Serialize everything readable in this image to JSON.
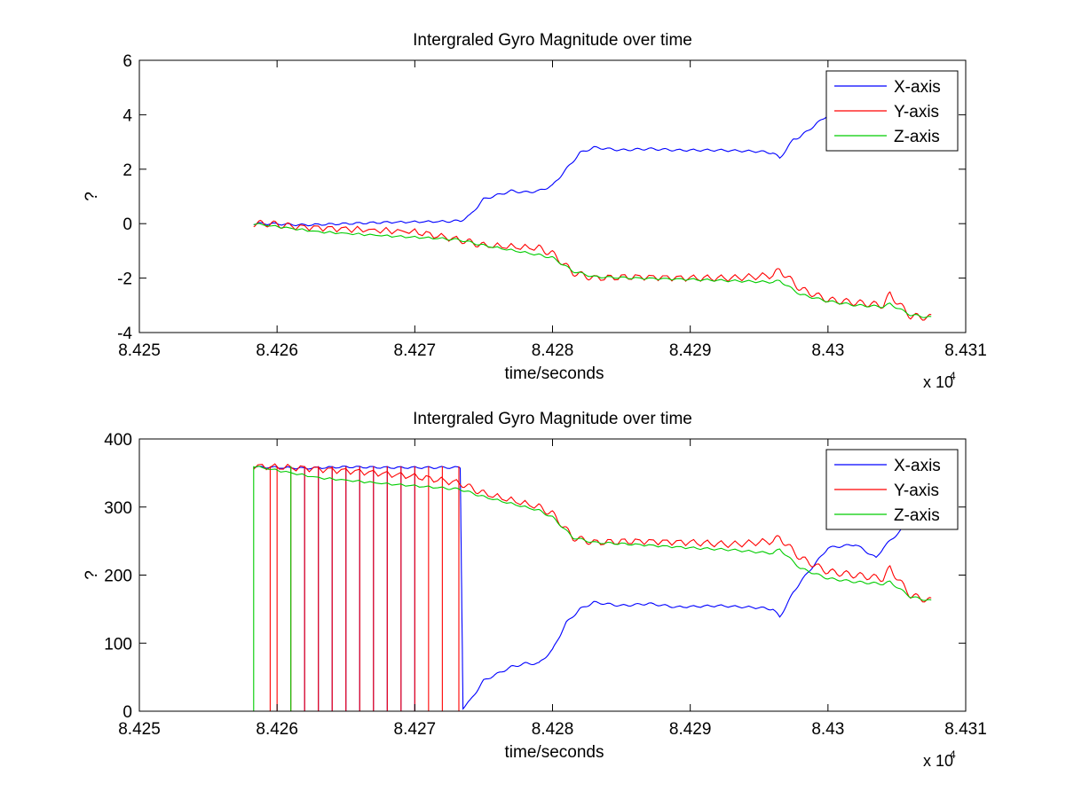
{
  "colors": {
    "x": "#0000ff",
    "y": "#ff0000",
    "z": "#00cc00",
    "axes": "#000000",
    "background": "#ffffff"
  },
  "chart_data": [
    {
      "type": "line",
      "title": "Intergraled Gyro Magnitude over time",
      "xlabel": "time/seconds",
      "ylabel": "?",
      "x_multiplier": "x 10",
      "x_multiplier_exp": "4",
      "xlim": [
        8.425,
        8.431
      ],
      "ylim": [
        -4,
        6
      ],
      "xticks": [
        8.425,
        8.426,
        8.427,
        8.428,
        8.429,
        8.43,
        8.431
      ],
      "xtick_labels": [
        "8.425",
        "8.426",
        "8.427",
        "8.428",
        "8.429",
        "8.43",
        "8.431"
      ],
      "yticks": [
        -4,
        -2,
        0,
        2,
        4,
        6
      ],
      "ytick_labels": [
        "-4",
        "-2",
        "0",
        "2",
        "4",
        "6"
      ],
      "grid": false,
      "legend": "top-right",
      "legend_entries": [
        "X-axis",
        "Y-axis",
        "Z-axis"
      ],
      "series": [
        {
          "name": "X-axis",
          "x": [
            8.42583,
            8.42595,
            8.4262,
            8.4265,
            8.4268,
            8.4272,
            8.42733,
            8.4274,
            8.4275,
            8.4277,
            8.4278,
            8.4279,
            8.428,
            8.4281,
            8.4282,
            8.4283,
            8.4285,
            8.4287,
            8.4289,
            8.4292,
            8.4295,
            8.4296,
            8.42965,
            8.42975,
            8.4298,
            8.4299,
            8.43,
            8.43012
          ],
          "y": [
            0,
            0,
            -0.05,
            0,
            0.05,
            0.08,
            0.1,
            0.3,
            0.9,
            1.2,
            1.15,
            1.2,
            1.4,
            2.0,
            2.6,
            2.8,
            2.7,
            2.75,
            2.7,
            2.7,
            2.65,
            2.6,
            2.4,
            3.1,
            3.2,
            3.6,
            4.0,
            4.1
          ]
        },
        {
          "name": "Y-axis",
          "x": [
            8.42583,
            8.42595,
            8.4261,
            8.4265,
            8.427,
            8.42733,
            8.4275,
            8.4279,
            8.428,
            8.42815,
            8.4283,
            8.4286,
            8.429,
            8.4293,
            8.4296,
            8.42965,
            8.4298,
            8.43,
            8.4302,
            8.4304,
            8.43045,
            8.4306,
            8.43075
          ],
          "y": [
            0,
            0,
            -0.1,
            -0.2,
            -0.3,
            -0.6,
            -0.8,
            -0.9,
            -1.1,
            -1.8,
            -2.0,
            -1.95,
            -2.0,
            -2.0,
            -1.9,
            -1.7,
            -2.4,
            -2.8,
            -2.9,
            -3.0,
            -2.6,
            -3.4,
            -3.45
          ]
        },
        {
          "name": "Z-axis",
          "x": [
            8.42583,
            8.4263,
            8.4268,
            8.4272,
            8.42733,
            8.4275,
            8.4279,
            8.428,
            8.42815,
            8.4283,
            8.4286,
            8.429,
            8.4293,
            8.4296,
            8.42965,
            8.4298,
            8.43,
            8.4302,
            8.4304,
            8.43045,
            8.4306,
            8.43075
          ],
          "y": [
            0,
            -0.3,
            -0.45,
            -0.55,
            -0.6,
            -0.8,
            -1.15,
            -1.25,
            -1.75,
            -1.95,
            -2.0,
            -2.05,
            -2.1,
            -2.15,
            -2.1,
            -2.6,
            -2.85,
            -3.0,
            -3.05,
            -2.95,
            -3.35,
            -3.45
          ]
        }
      ]
    },
    {
      "type": "line",
      "title": "Intergraled Gyro Magnitude over time",
      "xlabel": "time/seconds",
      "ylabel": "?",
      "x_multiplier": "x 10",
      "x_multiplier_exp": "4",
      "xlim": [
        8.425,
        8.431
      ],
      "ylim": [
        0,
        400
      ],
      "xticks": [
        8.425,
        8.426,
        8.427,
        8.428,
        8.429,
        8.43,
        8.431
      ],
      "xtick_labels": [
        "8.425",
        "8.426",
        "8.427",
        "8.428",
        "8.429",
        "8.43",
        "8.431"
      ],
      "yticks": [
        0,
        100,
        200,
        300,
        400
      ],
      "ytick_labels": [
        "0",
        "100",
        "200",
        "300",
        "400"
      ],
      "grid": false,
      "legend": "top-right",
      "legend_entries": [
        "X-axis",
        "Y-axis",
        "Z-axis"
      ],
      "series": [
        {
          "name": "X-axis",
          "x": [
            8.42583,
            8.4262,
            8.4265,
            8.4268,
            8.4271,
            8.42733,
            8.42735,
            8.4274,
            8.4275,
            8.4277,
            8.4278,
            8.4279,
            8.428,
            8.4281,
            8.4282,
            8.4283,
            8.4285,
            8.4287,
            8.4289,
            8.4292,
            8.4295,
            8.4296,
            8.42965,
            8.42975,
            8.4298,
            8.43,
            8.4302,
            8.43035,
            8.4304,
            8.43055
          ],
          "y": [
            359,
            357,
            359,
            358,
            358,
            358,
            5,
            15,
            45,
            65,
            70,
            70,
            90,
            130,
            150,
            160,
            155,
            158,
            153,
            155,
            152,
            150,
            138,
            175,
            190,
            240,
            245,
            225,
            240,
            270
          ],
          "wrap_toggle_x": [
            8.4262,
            8.4263,
            8.4264,
            8.4265,
            8.4266,
            8.4267,
            8.4268,
            8.4269,
            8.427
          ]
        },
        {
          "name": "Y-axis",
          "x": [
            8.42583,
            8.4262,
            8.4266,
            8.427,
            8.42733,
            8.4275,
            8.4279,
            8.428,
            8.42815,
            8.4283,
            8.4286,
            8.429,
            8.4293,
            8.4296,
            8.42965,
            8.4298,
            8.43,
            8.4302,
            8.4304,
            8.43045,
            8.4306,
            8.43075
          ],
          "y": [
            360,
            357,
            352,
            345,
            335,
            320,
            300,
            290,
            255,
            248,
            250,
            248,
            245,
            250,
            255,
            225,
            205,
            200,
            195,
            210,
            170,
            162
          ],
          "wrap_toggle_x": [
            8.42595,
            8.426,
            8.4261,
            8.4262,
            8.4263,
            8.4264,
            8.4265,
            8.4266,
            8.4267,
            8.4268,
            8.4269,
            8.427,
            8.4271,
            8.4272,
            8.42732
          ]
        },
        {
          "name": "Z-axis",
          "x": [
            8.42583,
            8.4263,
            8.4268,
            8.4272,
            8.42733,
            8.4275,
            8.4279,
            8.428,
            8.42815,
            8.4283,
            8.4286,
            8.429,
            8.4293,
            8.4296,
            8.42965,
            8.4298,
            8.43,
            8.4302,
            8.4304,
            8.43045,
            8.4306,
            8.43075
          ],
          "y": [
            360,
            343,
            334,
            328,
            326,
            315,
            295,
            285,
            255,
            248,
            245,
            240,
            237,
            232,
            238,
            210,
            195,
            190,
            187,
            190,
            168,
            162
          ],
          "wrap_toggle_x": [
            8.42583,
            8.4261
          ]
        }
      ]
    }
  ]
}
